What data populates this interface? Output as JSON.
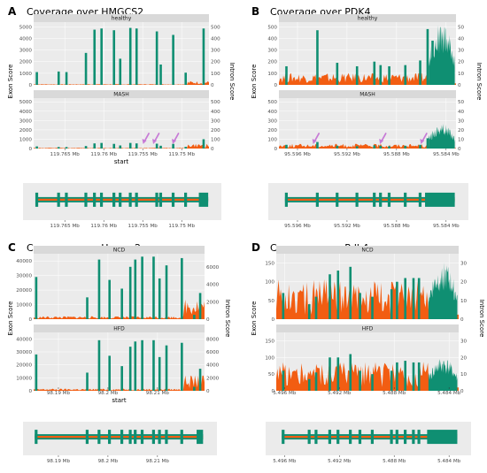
{
  "colors": {
    "exon": "#0f8f72",
    "intron": "#f25d12",
    "strip": "#d9d9d9",
    "panel": "#ebebeb",
    "arrow": "#c77bd6"
  },
  "panels": [
    {
      "label": "A",
      "title": "Coverage over HMGCS2",
      "ylabel": "Exon Score",
      "y2label": "Intron Score",
      "xlabel": "start",
      "xlim": [
        119.769,
        119.7465
      ],
      "xticks": [
        "119.765 Mb",
        "119.76 Mb",
        "119.755 Mb",
        "119.75 Mb"
      ],
      "xtickvals": [
        119.765,
        119.76,
        119.755,
        119.75
      ],
      "yticks": [
        "0",
        "1000",
        "2000",
        "3000",
        "4000",
        "5000"
      ],
      "ytickvals": [
        0,
        1000,
        2000,
        3000,
        4000,
        5000
      ],
      "ylim": [
        0,
        5400
      ],
      "y2ticks": [
        "0",
        "100",
        "200",
        "300",
        "400",
        "500"
      ],
      "y2tickvals": [
        0,
        100,
        200,
        300,
        400,
        500
      ],
      "y2lim": [
        0,
        540
      ],
      "facets": [
        {
          "name": "healthy",
          "exons": [
            [
              119.7686,
              1100
            ],
            [
              119.7658,
              1150
            ],
            [
              119.7648,
              1100
            ],
            [
              119.7623,
              2750
            ],
            [
              119.7612,
              4750
            ],
            [
              119.7603,
              4850
            ],
            [
              119.7587,
              4700
            ],
            [
              119.7579,
              2250
            ],
            [
              119.7566,
              4900
            ],
            [
              119.7558,
              4850
            ],
            [
              119.7532,
              4600
            ],
            [
              119.7527,
              1750
            ],
            [
              119.7511,
              4300
            ],
            [
              119.7495,
              1050
            ],
            [
              119.7472,
              4850
            ]
          ],
          "intron": 4,
          "intron_end": 20,
          "arrows": []
        },
        {
          "name": "MASH",
          "exons": [
            [
              119.7686,
              230
            ],
            [
              119.7658,
              160
            ],
            [
              119.7648,
              160
            ],
            [
              119.7623,
              270
            ],
            [
              119.7612,
              550
            ],
            [
              119.7603,
              600
            ],
            [
              119.7587,
              500
            ],
            [
              119.7579,
              330
            ],
            [
              119.7566,
              600
            ],
            [
              119.7558,
              550
            ],
            [
              119.7532,
              520
            ],
            [
              119.7527,
              300
            ],
            [
              119.7511,
              500
            ],
            [
              119.7495,
              180
            ],
            [
              119.7472,
              1000
            ]
          ],
          "intron": 5,
          "intron_end": 30,
          "arrows": [
            119.7549,
            119.7536,
            119.7511
          ]
        }
      ],
      "structure_exons": [
        119.7686,
        119.7658,
        119.7648,
        119.7623,
        119.7612,
        119.7603,
        119.7587,
        119.7579,
        119.7566,
        119.7558,
        119.7532,
        119.7527,
        119.7511,
        119.7495
      ],
      "structure_end": [
        119.7478,
        119.7466
      ]
    },
    {
      "label": "B",
      "title": "Coverage over PDK4",
      "ylabel": "Exon Score",
      "y2label": "Intron Score",
      "xlabel": "",
      "xlim": [
        95.5975,
        95.5832
      ],
      "xticks": [
        "95.596 Mb",
        "95.592 Mb",
        "95.588 Mb",
        "95.584 Mb"
      ],
      "xtickvals": [
        95.596,
        95.592,
        95.588,
        95.584
      ],
      "yticks": [
        "0",
        "100",
        "200",
        "300",
        "400",
        "500"
      ],
      "ytickvals": [
        0,
        100,
        200,
        300,
        400,
        500
      ],
      "ylim": [
        0,
        540
      ],
      "y2ticks": [
        "0",
        "10",
        "20",
        "30",
        "40",
        "50"
      ],
      "y2tickvals": [
        0,
        10,
        20,
        30,
        40,
        50
      ],
      "y2lim": [
        0,
        54
      ],
      "facets": [
        {
          "name": "healthy",
          "exons": [
            [
              95.5969,
              160
            ],
            [
              95.5944,
              470
            ],
            [
              95.5928,
              190
            ],
            [
              95.5912,
              160
            ],
            [
              95.5898,
              200
            ],
            [
              95.5893,
              170
            ],
            [
              95.5886,
              160
            ],
            [
              95.5873,
              170
            ],
            [
              95.5861,
              210
            ],
            [
              95.5855,
              480
            ],
            [
              95.5851,
              380
            ]
          ],
          "intron": 6,
          "utr": [
            95.5854,
            95.5833,
            150,
            480
          ],
          "arrows": []
        },
        {
          "name": "MASH",
          "exons": [
            [
              95.5969,
              40
            ],
            [
              95.5944,
              70
            ],
            [
              95.5928,
              30
            ],
            [
              95.5912,
              25
            ],
            [
              95.5898,
              35
            ],
            [
              95.5893,
              30
            ],
            [
              95.5886,
              25
            ],
            [
              95.5873,
              30
            ],
            [
              95.5861,
              40
            ],
            [
              95.5855,
              110
            ],
            [
              95.5851,
              70
            ]
          ],
          "intron": 3,
          "utr": [
            95.5854,
            95.5833,
            30,
            240
          ],
          "arrows": [
            95.5947,
            95.5893,
            95.586
          ]
        }
      ],
      "structure_exons": [
        95.5969,
        95.5944,
        95.5928,
        95.5912,
        95.5898,
        95.5893,
        95.5886,
        95.5873,
        95.5861
      ],
      "structure_end": [
        95.5857,
        95.5833
      ]
    },
    {
      "label": "C",
      "title": "Coverage over Hmgcs2",
      "ylabel": "Exon Score",
      "y2label": "Intron Score",
      "xlabel": "start",
      "xlim": [
        98.185,
        98.2195
      ],
      "xticks": [
        "98.19 Mb",
        "98.2 Mb",
        "98.21 Mb"
      ],
      "xtickvals": [
        98.19,
        98.2,
        98.21
      ],
      "yticks": [
        "0",
        "10000",
        "20000",
        "30000",
        "40000"
      ],
      "ytickvals": [
        0,
        10000,
        20000,
        30000,
        40000
      ],
      "ylim": [
        0,
        45000
      ],
      "y2ticks": [
        "0",
        "2000",
        "4000",
        "6000"
      ],
      "y2tickvals": [
        0,
        2000,
        4000,
        6000
      ],
      "y2lim": [
        0,
        7500
      ],
      "y2ticks_hfd": [
        "0",
        "2000",
        "4000",
        "6000",
        "8000"
      ],
      "y2tickvals_hfd": [
        0,
        2000,
        4000,
        6000,
        8000
      ],
      "y2lim_hfd": [
        0,
        9000
      ],
      "facets": [
        {
          "name": "NCD",
          "exons": [
            [
              98.1855,
              29000
            ],
            [
              98.1958,
              15000
            ],
            [
              98.1982,
              41000
            ],
            [
              98.2003,
              27000
            ],
            [
              98.2028,
              21000
            ],
            [
              98.2045,
              36000
            ],
            [
              98.2055,
              41000
            ],
            [
              98.2069,
              43000
            ],
            [
              98.2092,
              43000
            ],
            [
              98.2104,
              28000
            ],
            [
              98.2118,
              37000
            ],
            [
              98.2149,
              42000
            ],
            [
              98.2174,
              3000
            ],
            [
              98.2186,
              18000
            ]
          ],
          "intron": 200,
          "intron_end": 1500,
          "arrows": []
        },
        {
          "name": "HFD",
          "exons": [
            [
              98.1855,
              28000
            ],
            [
              98.1958,
              14000
            ],
            [
              98.1982,
              39000
            ],
            [
              98.2003,
              27000
            ],
            [
              98.2028,
              19000
            ],
            [
              98.2045,
              34000
            ],
            [
              98.2055,
              38000
            ],
            [
              98.2069,
              39000
            ],
            [
              98.2092,
              39000
            ],
            [
              98.2104,
              26000
            ],
            [
              98.2118,
              35000
            ],
            [
              98.2149,
              37000
            ],
            [
              98.2174,
              3000
            ],
            [
              98.2186,
              17000
            ]
          ],
          "intron": 200,
          "intron_end": 1400,
          "arrows": []
        }
      ],
      "structure_exons": [
        98.1855,
        98.1958,
        98.1982,
        98.2003,
        98.2028,
        98.2045,
        98.2055,
        98.2069,
        98.2092,
        98.2104,
        98.2118,
        98.2149
      ],
      "structure_end": [
        98.2179,
        98.2192
      ]
    },
    {
      "label": "D",
      "title": "Coverage over Pdk4",
      "ylabel": "Exon Score",
      "y2label": "Intron Score",
      "xlabel": "",
      "xlim": [
        5.4966,
        5.4833
      ],
      "xticks": [
        "5.496 Mb",
        "5.492 Mb",
        "5.488 Mb",
        "5.484 Mb"
      ],
      "xtickvals": [
        5.496,
        5.492,
        5.488,
        5.484
      ],
      "yticks": [
        "0",
        "50",
        "100",
        "150"
      ],
      "ytickvals": [
        0,
        50,
        100,
        150
      ],
      "ylim": [
        0,
        175
      ],
      "y2ticks": [
        "0",
        "10",
        "20",
        "30"
      ],
      "y2tickvals": [
        0,
        10,
        20,
        30
      ],
      "y2lim": [
        0,
        35
      ],
      "facets": [
        {
          "name": "NCD",
          "exons": [
            [
              5.4961,
              70
            ],
            [
              5.4942,
              40
            ],
            [
              5.4937,
              60
            ],
            [
              5.4927,
              120
            ],
            [
              5.4921,
              130
            ],
            [
              5.4912,
              140
            ],
            [
              5.4905,
              70
            ],
            [
              5.4896,
              60
            ],
            [
              5.4882,
              80
            ],
            [
              5.4878,
              100
            ],
            [
              5.4872,
              110
            ],
            [
              5.4866,
              110
            ],
            [
              5.4862,
              110
            ]
          ],
          "intron": 12,
          "utr": [
            5.4855,
            5.4834,
            60,
            135
          ],
          "arrows": []
        },
        {
          "name": "HFD",
          "exons": [
            [
              5.4961,
              60
            ],
            [
              5.4942,
              35
            ],
            [
              5.4937,
              55
            ],
            [
              5.4927,
              100
            ],
            [
              5.4921,
              100
            ],
            [
              5.4912,
              110
            ],
            [
              5.4905,
              60
            ],
            [
              5.4896,
              50
            ],
            [
              5.4882,
              60
            ],
            [
              5.4878,
              85
            ],
            [
              5.4872,
              90
            ],
            [
              5.4866,
              85
            ],
            [
              5.4862,
              85
            ]
          ],
          "intron": 10,
          "utr": [
            5.4855,
            5.4834,
            40,
            90
          ],
          "arrows": []
        }
      ],
      "structure_exons": [
        5.4961,
        5.4942,
        5.4937,
        5.4927,
        5.4921,
        5.4912,
        5.4905,
        5.4896,
        5.4882,
        5.4878,
        5.4872,
        5.4866,
        5.4862
      ],
      "structure_end": [
        5.4856,
        5.4834
      ]
    }
  ]
}
